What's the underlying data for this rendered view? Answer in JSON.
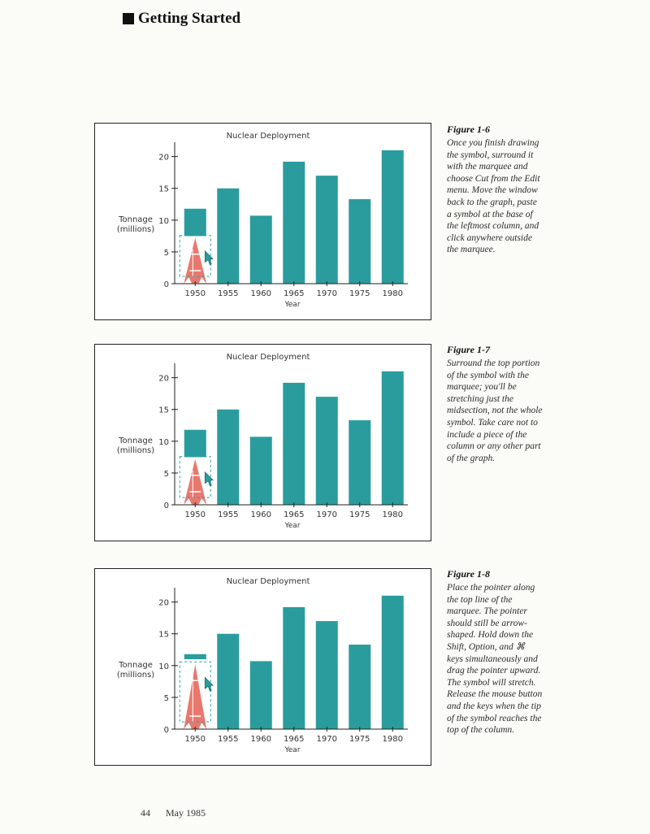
{
  "header": {
    "title": "Getting Started"
  },
  "figures": [
    {
      "caption_title": "Figure 1-6",
      "caption_body": "Once you finish drawing the symbol, surround it with the marquee and choose Cut from the Edit menu. Move the window back to the graph, paste a symbol at the base of the leftmost column, and click anywhere outside the marquee.",
      "chart_data": {
        "type": "bar",
        "title": "Nuclear Deployment",
        "xlabel": "Year",
        "ylabel": "Tonnage (millions)",
        "ylabel_lines": [
          "Tonnage",
          "(millions)"
        ],
        "categories": [
          "1950",
          "1955",
          "1960",
          "1965",
          "1970",
          "1975",
          "1980"
        ],
        "values": [
          11.8,
          15,
          10.7,
          19.2,
          17,
          13.3,
          21
        ],
        "yticks": [
          0,
          5,
          10,
          15,
          20
        ],
        "ylim": [
          0,
          22
        ],
        "first_bar_cut_to": 7.5,
        "symbol_height": 7.2,
        "bar_color": "#2a9c9e",
        "symbol_color": "#e8786e"
      }
    },
    {
      "caption_title": "Figure 1-7",
      "caption_body": "Surround the top portion of the symbol with the marquee; you'll be stretching just the midsection, not the whole symbol. Take care not to include a piece of the column or any other part of the graph.",
      "chart_data": {
        "type": "bar",
        "title": "Nuclear Deployment",
        "xlabel": "Year",
        "ylabel": "Tonnage (millions)",
        "ylabel_lines": [
          "Tonnage",
          "(millions)"
        ],
        "categories": [
          "1950",
          "1955",
          "1960",
          "1965",
          "1970",
          "1975",
          "1980"
        ],
        "values": [
          11.8,
          15,
          10.7,
          19.2,
          17,
          13.3,
          21
        ],
        "yticks": [
          0,
          5,
          10,
          15,
          20
        ],
        "ylim": [
          0,
          22
        ],
        "first_bar_cut_to": 7.5,
        "symbol_height": 7.2,
        "bar_color": "#2a9c9e",
        "symbol_color": "#e8786e"
      }
    },
    {
      "caption_title": "Figure 1-8",
      "caption_body": "Place the pointer along the top line of the marquee. The pointer should still be arrow-shaped. Hold down the Shift, Option, and ⌘ keys simultaneously and drag the pointer upward. The symbol will stretch. Release the mouse button and the keys when the tip of the symbol reaches the top of the column.",
      "chart_data": {
        "type": "bar",
        "title": "Nuclear Deployment",
        "xlabel": "Year",
        "ylabel": "Tonnage (millions)",
        "ylabel_lines": [
          "Tonnage",
          "(millions)"
        ],
        "categories": [
          "1950",
          "1955",
          "1960",
          "1965",
          "1970",
          "1975",
          "1980"
        ],
        "values": [
          11.8,
          15,
          10.7,
          19.2,
          17,
          13.3,
          21
        ],
        "yticks": [
          0,
          5,
          10,
          15,
          20
        ],
        "ylim": [
          0,
          22
        ],
        "first_bar_cut_to": 11,
        "symbol_height": 10.2,
        "bar_color": "#2a9c9e",
        "symbol_color": "#e8786e"
      }
    }
  ],
  "footer": {
    "page_number": "44",
    "date": "May 1985"
  }
}
